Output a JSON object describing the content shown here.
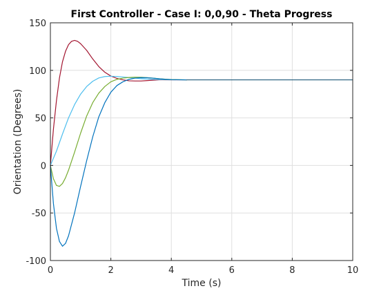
{
  "chart_data": {
    "type": "line",
    "title": "First Controller - Case I: 0,0,90 - Theta Progress",
    "xlabel": "Time (s)",
    "ylabel": "Orientation (Degrees)",
    "xlim": [
      0,
      10
    ],
    "ylim": [
      -100,
      150
    ],
    "xticks": [
      0,
      2,
      4,
      6,
      8,
      10
    ],
    "xtick_labels": [
      "0",
      "2",
      "4",
      "6",
      "8",
      "10"
    ],
    "yticks": [
      -100,
      -50,
      0,
      50,
      100,
      150
    ],
    "ytick_labels": [
      "-100",
      "-50",
      "0",
      "50",
      "100",
      "150"
    ],
    "grid": true,
    "legend": "none",
    "series": [
      {
        "color": "#a2142f",
        "x": [
          0,
          0.1,
          0.2,
          0.3,
          0.4,
          0.5,
          0.6,
          0.7,
          0.8,
          0.9,
          1.0,
          1.2,
          1.4,
          1.6,
          1.8,
          2.0,
          2.2,
          2.4,
          2.6,
          2.8,
          3.0,
          3.2,
          3.4,
          3.6,
          3.8,
          4.0,
          4.5
        ],
        "y": [
          0,
          38,
          68,
          92,
          109,
          120,
          127,
          130.5,
          131.5,
          130.5,
          128,
          121,
          112,
          104,
          98,
          94,
          91.5,
          90,
          89,
          88.8,
          88.8,
          89.2,
          89.7,
          90,
          90.1,
          90,
          90
        ]
      },
      {
        "color": "#4dbeee",
        "x": [
          0,
          0.2,
          0.4,
          0.6,
          0.8,
          1.0,
          1.2,
          1.4,
          1.6,
          1.8,
          2.0,
          2.2,
          2.4,
          2.6,
          2.8,
          3.0,
          3.2,
          3.6,
          4.0,
          4.5
        ],
        "y": [
          0,
          15,
          33,
          50,
          64,
          75,
          83,
          88.5,
          92,
          93.5,
          93.8,
          93.5,
          93,
          92.4,
          91.8,
          91.2,
          90.8,
          90.3,
          90.1,
          90
        ]
      },
      {
        "color": "#77ac30",
        "x": [
          0,
          0.1,
          0.2,
          0.3,
          0.4,
          0.5,
          0.6,
          0.8,
          1.0,
          1.2,
          1.4,
          1.6,
          1.8,
          2.0,
          2.2,
          2.4,
          2.6,
          2.8,
          3.0,
          3.2,
          3.4,
          3.6,
          3.8,
          4.0,
          4.5
        ],
        "y": [
          0,
          -14,
          -21,
          -22,
          -19,
          -13,
          -5,
          14,
          34,
          52,
          66,
          76,
          83,
          88,
          90.5,
          91.8,
          92.5,
          92.8,
          92.7,
          92.3,
          91.8,
          91.2,
          90.7,
          90.3,
          90
        ]
      },
      {
        "color": "#0072bd",
        "x": [
          0,
          0.1,
          0.2,
          0.3,
          0.4,
          0.5,
          0.6,
          0.8,
          1.0,
          1.2,
          1.4,
          1.6,
          1.8,
          2.0,
          2.2,
          2.4,
          2.6,
          2.8,
          3.0,
          3.2,
          3.4,
          3.6,
          3.8,
          4.0,
          4.5
        ],
        "y": [
          0,
          -40,
          -66,
          -80,
          -85,
          -82,
          -74,
          -50,
          -22,
          5,
          30,
          51,
          66,
          77,
          84,
          88,
          90.5,
          91.8,
          92.3,
          92.2,
          91.8,
          91.2,
          90.6,
          90.2,
          90
        ]
      },
      {
        "color": "#1f5a7a",
        "x": [
          4.5,
          10
        ],
        "y": [
          90,
          90
        ]
      }
    ]
  }
}
